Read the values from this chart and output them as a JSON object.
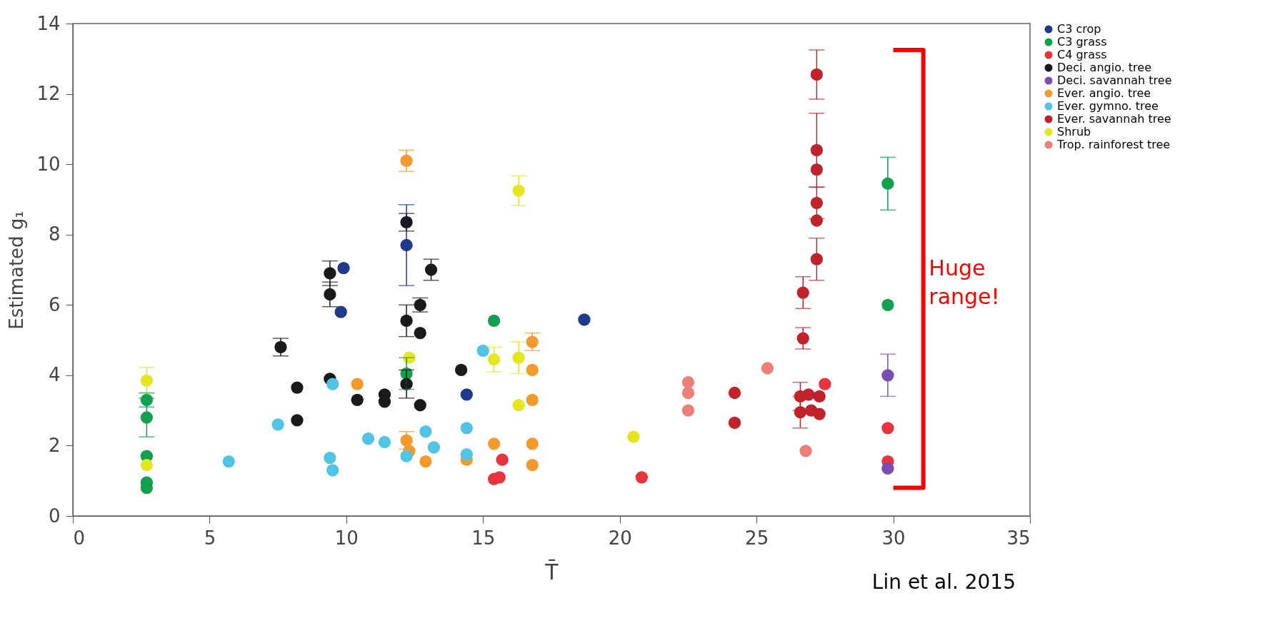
{
  "chart_data": {
    "type": "scatter",
    "xlabel": "T̄",
    "ylabel": "Estimated g₁",
    "xlim": [
      0,
      35
    ],
    "ylim": [
      0,
      14
    ],
    "xticks": [
      0,
      5,
      10,
      15,
      20,
      25,
      30,
      35
    ],
    "yticks": [
      0,
      2,
      4,
      6,
      8,
      10,
      12,
      14
    ],
    "grid": false,
    "legend": "right",
    "marker": "circle",
    "series": [
      {
        "name": "C3 crop",
        "color": "#1f3a8a",
        "x": [
          9.9,
          9.8,
          12.2,
          14.4,
          18.7
        ],
        "values": [
          7.05,
          5.8,
          7.7,
          3.45,
          5.58
        ],
        "errors": [
          null,
          null,
          1.15,
          null,
          null
        ]
      },
      {
        "name": "C3 grass",
        "color": "#10a050",
        "x": [
          2.7,
          2.7,
          2.7,
          2.7,
          2.7,
          12.2,
          15.4,
          29.8,
          29.8
        ],
        "values": [
          3.3,
          2.8,
          1.7,
          0.95,
          0.8,
          4.05,
          5.55,
          9.45,
          6.0
        ],
        "errors": [
          0.2,
          0.55,
          null,
          null,
          null,
          0.45,
          null,
          0.75,
          null
        ]
      },
      {
        "name": "C4 grass",
        "color": "#e8323c",
        "x": [
          15.4,
          15.6,
          15.7,
          20.8,
          29.8,
          29.8,
          27.5
        ],
        "values": [
          1.05,
          1.1,
          1.6,
          1.1,
          2.5,
          1.55,
          3.75
        ],
        "errors": [
          null,
          null,
          null,
          null,
          null,
          null,
          null
        ]
      },
      {
        "name": "Deci. angio. tree",
        "color": "#1a1a1a",
        "x": [
          7.6,
          8.2,
          8.2,
          9.4,
          9.4,
          9.4,
          10.4,
          11.4,
          11.4,
          12.2,
          12.2,
          12.2,
          12.7,
          12.7,
          12.7,
          13.1,
          14.2
        ],
        "values": [
          4.8,
          3.65,
          2.72,
          6.9,
          6.3,
          3.9,
          3.3,
          3.45,
          3.25,
          8.35,
          5.55,
          3.75,
          6.0,
          5.2,
          3.15,
          7.0,
          4.15
        ],
        "errors": [
          0.25,
          null,
          null,
          0.35,
          0.35,
          null,
          null,
          null,
          null,
          0.25,
          0.45,
          0.4,
          0.2,
          null,
          null,
          0.3,
          null
        ]
      },
      {
        "name": "Deci. savannah tree",
        "color": "#7b4fb0",
        "x": [
          29.8,
          29.8
        ],
        "values": [
          4.0,
          1.35
        ],
        "errors": [
          0.6,
          null
        ]
      },
      {
        "name": "Ever. angio. tree",
        "color": "#f39a2c",
        "x": [
          10.4,
          12.2,
          12.2,
          12.3,
          12.9,
          14.4,
          15.4,
          16.8,
          16.8,
          16.8,
          16.8,
          16.8
        ],
        "values": [
          3.75,
          10.1,
          2.15,
          1.85,
          1.55,
          1.6,
          2.05,
          4.95,
          4.15,
          3.3,
          2.05,
          1.45
        ],
        "errors": [
          null,
          0.3,
          0.25,
          null,
          null,
          null,
          null,
          0.25,
          null,
          null,
          null,
          null
        ]
      },
      {
        "name": "Ever. gymno. tree",
        "color": "#4fc4e4",
        "x": [
          5.7,
          7.5,
          9.4,
          9.5,
          9.5,
          10.8,
          11.4,
          12.2,
          12.9,
          13.2,
          14.4,
          14.4,
          15.0
        ],
        "values": [
          1.55,
          2.6,
          1.65,
          1.3,
          3.75,
          2.2,
          2.1,
          1.7,
          2.4,
          1.95,
          2.5,
          1.75,
          4.7
        ],
        "errors": [
          null,
          null,
          null,
          null,
          null,
          null,
          null,
          null,
          null,
          null,
          null,
          null,
          null
        ]
      },
      {
        "name": "Ever. savannah tree",
        "color": "#c0232b",
        "x": [
          27.2,
          27.2,
          27.2,
          27.2,
          27.2,
          27.2,
          26.7,
          26.7,
          24.2,
          24.2,
          26.6,
          26.6,
          26.9,
          27.3,
          27.3,
          27.0
        ],
        "values": [
          12.55,
          10.4,
          9.85,
          8.9,
          8.4,
          7.3,
          6.35,
          5.05,
          3.5,
          2.65,
          3.4,
          2.95,
          3.45,
          2.9,
          3.4,
          3.0
        ],
        "errors": [
          0.7,
          1.05,
          null,
          0.45,
          null,
          0.6,
          0.45,
          0.3,
          null,
          null,
          0.4,
          0.45,
          null,
          null,
          null,
          null
        ]
      },
      {
        "name": "Shrub",
        "color": "#e6e620",
        "x": [
          2.7,
          2.7,
          12.3,
          15.4,
          16.3,
          16.3,
          16.3,
          20.5
        ],
        "values": [
          3.85,
          1.45,
          4.5,
          4.45,
          9.25,
          4.5,
          3.15,
          2.25
        ],
        "errors": [
          0.37,
          null,
          null,
          0.35,
          0.42,
          0.45,
          null,
          null
        ]
      },
      {
        "name": "Trop. rainforest tree",
        "color": "#ec7f78",
        "x": [
          22.5,
          22.5,
          22.5,
          25.4,
          26.8
        ],
        "values": [
          3.8,
          3.5,
          3.0,
          4.2,
          1.85
        ],
        "errors": [
          null,
          null,
          null,
          null,
          null
        ]
      }
    ],
    "annotations": [
      "Huge range!",
      "Lin et al. 2015"
    ]
  }
}
